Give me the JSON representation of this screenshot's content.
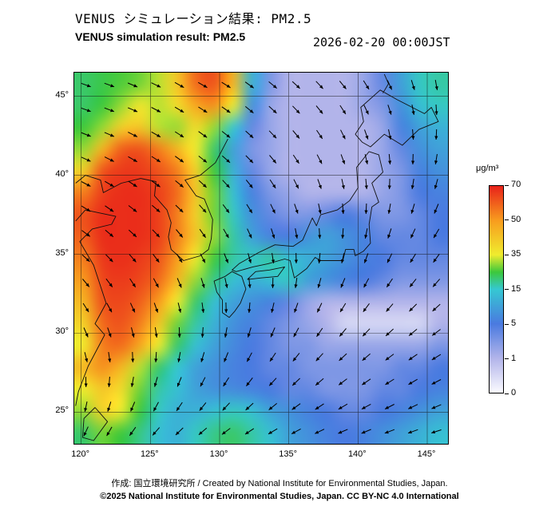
{
  "header": {
    "title_jp": "VENUS シミュレーション結果: PM2.5",
    "title_en": "VENUS simulation result: PM2.5",
    "timestamp": "2026-02-20 00:00JST"
  },
  "footer": {
    "credit": "作成: 国立環境研究所 / Created by National Institute for Environmental Studies, Japan.",
    "license": "©2025 National Institute for Environmental Studies, Japan. CC BY-NC 4.0 International"
  },
  "chart_data": {
    "type": "heatmap",
    "title": "VENUS simulation result: PM2.5",
    "title_jp": "VENUS シミュレーション結果: PM2.5",
    "timestamp": "2026-02-20 00:00JST",
    "units": "μg/m³",
    "colorbar": {
      "label": "μg/m³",
      "tick_labels": [
        "70",
        "50",
        "35",
        "15",
        "5",
        "1",
        "0"
      ],
      "tick_values_ascending": [
        0,
        1,
        5,
        15,
        35,
        50,
        70
      ],
      "stops": [
        {
          "value": 0,
          "color": "#fbfbff"
        },
        {
          "value": 1,
          "color": "#b2b4ea"
        },
        {
          "value": 5,
          "color": "#4a7ae0"
        },
        {
          "value": 15,
          "color": "#35c8d2"
        },
        {
          "value": 25,
          "color": "#3cc83c"
        },
        {
          "value": 35,
          "color": "#f0ec2e"
        },
        {
          "value": 50,
          "color": "#f89c1e"
        },
        {
          "value": 70,
          "color": "#e8221a"
        }
      ]
    },
    "axes": {
      "lon": {
        "min": 119.5,
        "max": 146.5,
        "tick_values": [
          120,
          125,
          130,
          135,
          140,
          145
        ],
        "tick_labels": [
          "120°",
          "125°",
          "130°",
          "135°",
          "140°",
          "145°"
        ]
      },
      "lat": {
        "min": 23,
        "max": 46.5,
        "tick_values": [
          45,
          40,
          35,
          30,
          25
        ],
        "tick_labels": [
          "45°",
          "40°",
          "35°",
          "30°",
          "25°"
        ]
      }
    },
    "grid": {
      "description": "Estimated PM2.5 concentration (μg/m³) on a lon/lat grid; rows run north (46.5N) to south (23N), columns run west (119.5E) to east (146.5E)",
      "lon_min": 119.5,
      "lon_max": 146.5,
      "lat_max": 46.5,
      "lat_min": 23,
      "values": [
        [
          22,
          24,
          26,
          28,
          32,
          42,
          58,
          62,
          45,
          12,
          3,
          1,
          1,
          1,
          1,
          2,
          4,
          10,
          16,
          18
        ],
        [
          22,
          25,
          30,
          36,
          32,
          38,
          48,
          52,
          35,
          8,
          2,
          1,
          1,
          1,
          1,
          2,
          3,
          8,
          14,
          16
        ],
        [
          25,
          30,
          40,
          42,
          32,
          30,
          38,
          30,
          15,
          4,
          2,
          1,
          1,
          1,
          1,
          1,
          2,
          6,
          10,
          12
        ],
        [
          30,
          45,
          60,
          62,
          55,
          45,
          35,
          22,
          10,
          3,
          2,
          1,
          1,
          1,
          1,
          1,
          2,
          4,
          8,
          10
        ],
        [
          40,
          62,
          66,
          66,
          62,
          55,
          40,
          25,
          12,
          4,
          2,
          1,
          1,
          1,
          1,
          1,
          2,
          3,
          6,
          8
        ],
        [
          55,
          65,
          68,
          68,
          65,
          58,
          42,
          28,
          14,
          6,
          3,
          2,
          1,
          1,
          1,
          1,
          2,
          3,
          5,
          6
        ],
        [
          62,
          68,
          68,
          68,
          65,
          55,
          40,
          28,
          16,
          8,
          4,
          3,
          3,
          4,
          5,
          4,
          3,
          3,
          4,
          5
        ],
        [
          60,
          68,
          68,
          68,
          65,
          55,
          42,
          30,
          18,
          10,
          6,
          5,
          8,
          10,
          8,
          6,
          4,
          4,
          4,
          5
        ],
        [
          55,
          66,
          68,
          66,
          62,
          50,
          35,
          25,
          18,
          16,
          18,
          14,
          12,
          10,
          8,
          6,
          5,
          4,
          4,
          4
        ],
        [
          50,
          64,
          66,
          64,
          58,
          45,
          30,
          20,
          14,
          12,
          14,
          16,
          10,
          8,
          6,
          5,
          4,
          3,
          3,
          3
        ],
        [
          45,
          62,
          64,
          60,
          50,
          35,
          22,
          14,
          10,
          8,
          6,
          4,
          2,
          1,
          1,
          1,
          1,
          1,
          1,
          1
        ],
        [
          40,
          58,
          62,
          55,
          42,
          28,
          18,
          12,
          8,
          6,
          4,
          3,
          2,
          1,
          0.5,
          0.5,
          0.5,
          0.5,
          0.5,
          1
        ],
        [
          35,
          55,
          58,
          48,
          35,
          22,
          14,
          10,
          7,
          5,
          4,
          3,
          3,
          2,
          2,
          2,
          2,
          2,
          2,
          3
        ],
        [
          45,
          52,
          45,
          32,
          22,
          15,
          10,
          8,
          6,
          5,
          4,
          4,
          3,
          3,
          3,
          3,
          3,
          4,
          4,
          5
        ],
        [
          35,
          42,
          38,
          28,
          18,
          14,
          10,
          8,
          7,
          6,
          5,
          4,
          4,
          3,
          3,
          3,
          4,
          4,
          5,
          6
        ],
        [
          30,
          40,
          35,
          25,
          16,
          12,
          12,
          14,
          16,
          14,
          10,
          8,
          6,
          5,
          4,
          4,
          5,
          6,
          8,
          10
        ],
        [
          22,
          28,
          25,
          20,
          14,
          12,
          16,
          20,
          22,
          18,
          14,
          10,
          8,
          6,
          5,
          6,
          8,
          10,
          12,
          14
        ]
      ]
    },
    "wind": {
      "description": "Wind vector directions (bearing toward which air flows, degrees clockwise from north); rows north to south across map",
      "bearings_toward_deg": [
        [
          110,
          110,
          115,
          120,
          120,
          125,
          130,
          135,
          140,
          150,
          160,
          170
        ],
        [
          110,
          112,
          118,
          122,
          125,
          130,
          135,
          140,
          150,
          160,
          170,
          180
        ],
        [
          115,
          118,
          122,
          126,
          130,
          135,
          142,
          150,
          160,
          170,
          180,
          190
        ],
        [
          120,
          124,
          128,
          132,
          138,
          145,
          152,
          162,
          172,
          182,
          192,
          200
        ],
        [
          128,
          132,
          136,
          142,
          148,
          155,
          165,
          175,
          185,
          195,
          205,
          212
        ],
        [
          138,
          142,
          148,
          155,
          162,
          170,
          180,
          190,
          200,
          208,
          215,
          220
        ],
        [
          150,
          155,
          162,
          170,
          178,
          188,
          198,
          206,
          214,
          220,
          226,
          230
        ],
        [
          165,
          172,
          180,
          190,
          198,
          206,
          214,
          220,
          226,
          230,
          234,
          238
        ],
        [
          185,
          192,
          200,
          208,
          215,
          221,
          227,
          231,
          235,
          238,
          241,
          244
        ],
        [
          205,
          212,
          220,
          226,
          231,
          236,
          240,
          243,
          246,
          248,
          250,
          252
        ]
      ]
    }
  }
}
